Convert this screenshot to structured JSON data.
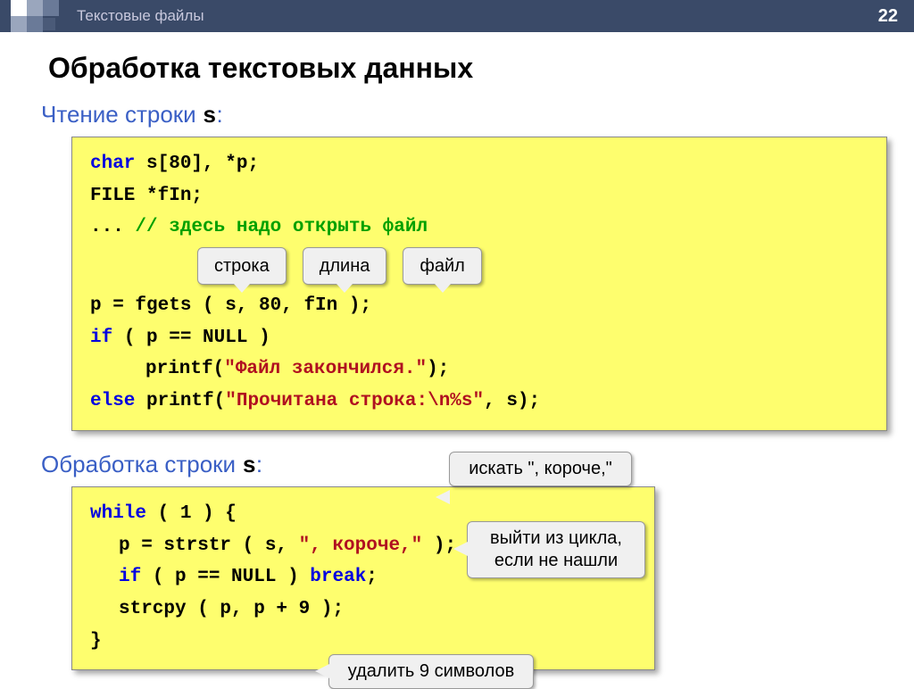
{
  "page_number": "22",
  "header_title": "Текстовые файлы",
  "main_title": "Обработка текстовых данных",
  "section1": {
    "title": "Чтение строки ",
    "var": "s",
    "colon": ":",
    "code": {
      "l1_a": "char",
      "l1_b": " s[80], *p;",
      "l2_a": "FILE",
      "l2_b": " *fIn;",
      "l3_a": "... ",
      "l3_b": "// здесь надо открыть файл",
      "tags": {
        "t1": "строка",
        "t2": "длина",
        "t3": "файл"
      },
      "l4": "p = fgets ( s, 80, fIn );",
      "l5_a": "if",
      "l5_b": " ( p == ",
      "l5_c": "NULL",
      "l5_d": " )",
      "l6_a": "printf(",
      "l6_b": "\"Файл закончился.\"",
      "l6_c": ");",
      "l7_a": "else",
      "l7_b": " printf(",
      "l7_c": "\"Прочитана строка:\\n%s\"",
      "l7_d": ", s);"
    }
  },
  "section2": {
    "title": "Обработка строки ",
    "var": "s",
    "colon": ":",
    "code": {
      "l1_a": "while",
      "l1_b": " ( 1 ) {",
      "l2_a": "p = strstr ( s, ",
      "l2_b": "\", короче,\"",
      "l2_c": " );",
      "l3_a": "if",
      "l3_b": " ( p == ",
      "l3_c": "NULL",
      "l3_d": " ) ",
      "l3_e": "break",
      "l3_f": ";",
      "l4": "strcpy ( p, p + 9 );",
      "l5": "}"
    },
    "callouts": {
      "search": "искать \", короче,\"",
      "exit": "выйти из цикла, если не нашли",
      "del": "удалить 9 символов"
    }
  },
  "colors": {
    "header_bg": "#3a4a68",
    "code_bg": "#fefe6e",
    "section_color": "#3a5fc5",
    "keyword": "#0000e0",
    "comment": "#00a000",
    "string": "#b01020",
    "callout_bg": "#f0f0f0"
  }
}
